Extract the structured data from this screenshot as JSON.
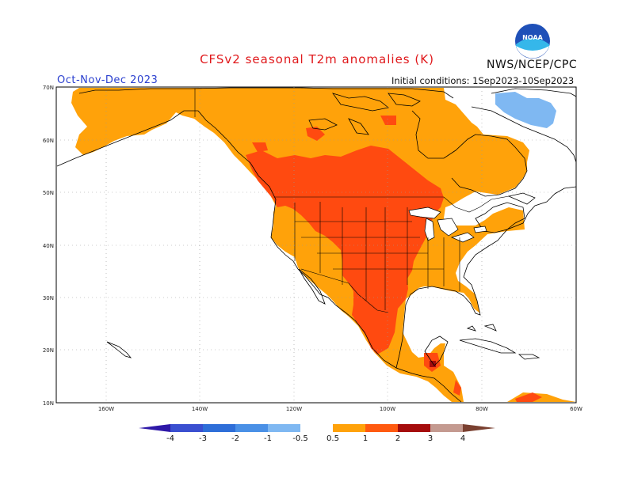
{
  "header": {
    "title": "CFSv2 seasonal T2m anomalies (K)",
    "agency": "NWS/NCEP/CPC",
    "period": "Oct-Nov-Dec 2023",
    "initial_conditions": "Initial conditions:  1Sep2023-10Sep2023",
    "logo_text": "NOAA"
  },
  "axes": {
    "lat_labels": [
      "70N",
      "60N",
      "50N",
      "40N",
      "30N",
      "20N",
      "10N"
    ],
    "lon_labels": [
      "160W",
      "140W",
      "120W",
      "100W",
      "80W",
      "60W"
    ]
  },
  "colorbar": {
    "labels": [
      "-4",
      "-3",
      "-2",
      "-1",
      "-0.5",
      "0.5",
      "1",
      "2",
      "3",
      "4"
    ],
    "colors": [
      "#2e18a8",
      "#3a4fd0",
      "#2e6ed8",
      "#4a90e6",
      "#7fb8f2",
      "#ffffff",
      "#ffa20a",
      "#ff5a10",
      "#e01a10",
      "#a50c0c",
      "#c49a90",
      "#7a4030"
    ]
  },
  "legend_colors": {
    "weak_cold": "#7fb8f2",
    "warm_0_5_1": "#ffa20a",
    "warm_1_2": "#ff4a10",
    "warm_2_3": "#a50c0c",
    "grid": "#999999",
    "coast": "#000000"
  }
}
